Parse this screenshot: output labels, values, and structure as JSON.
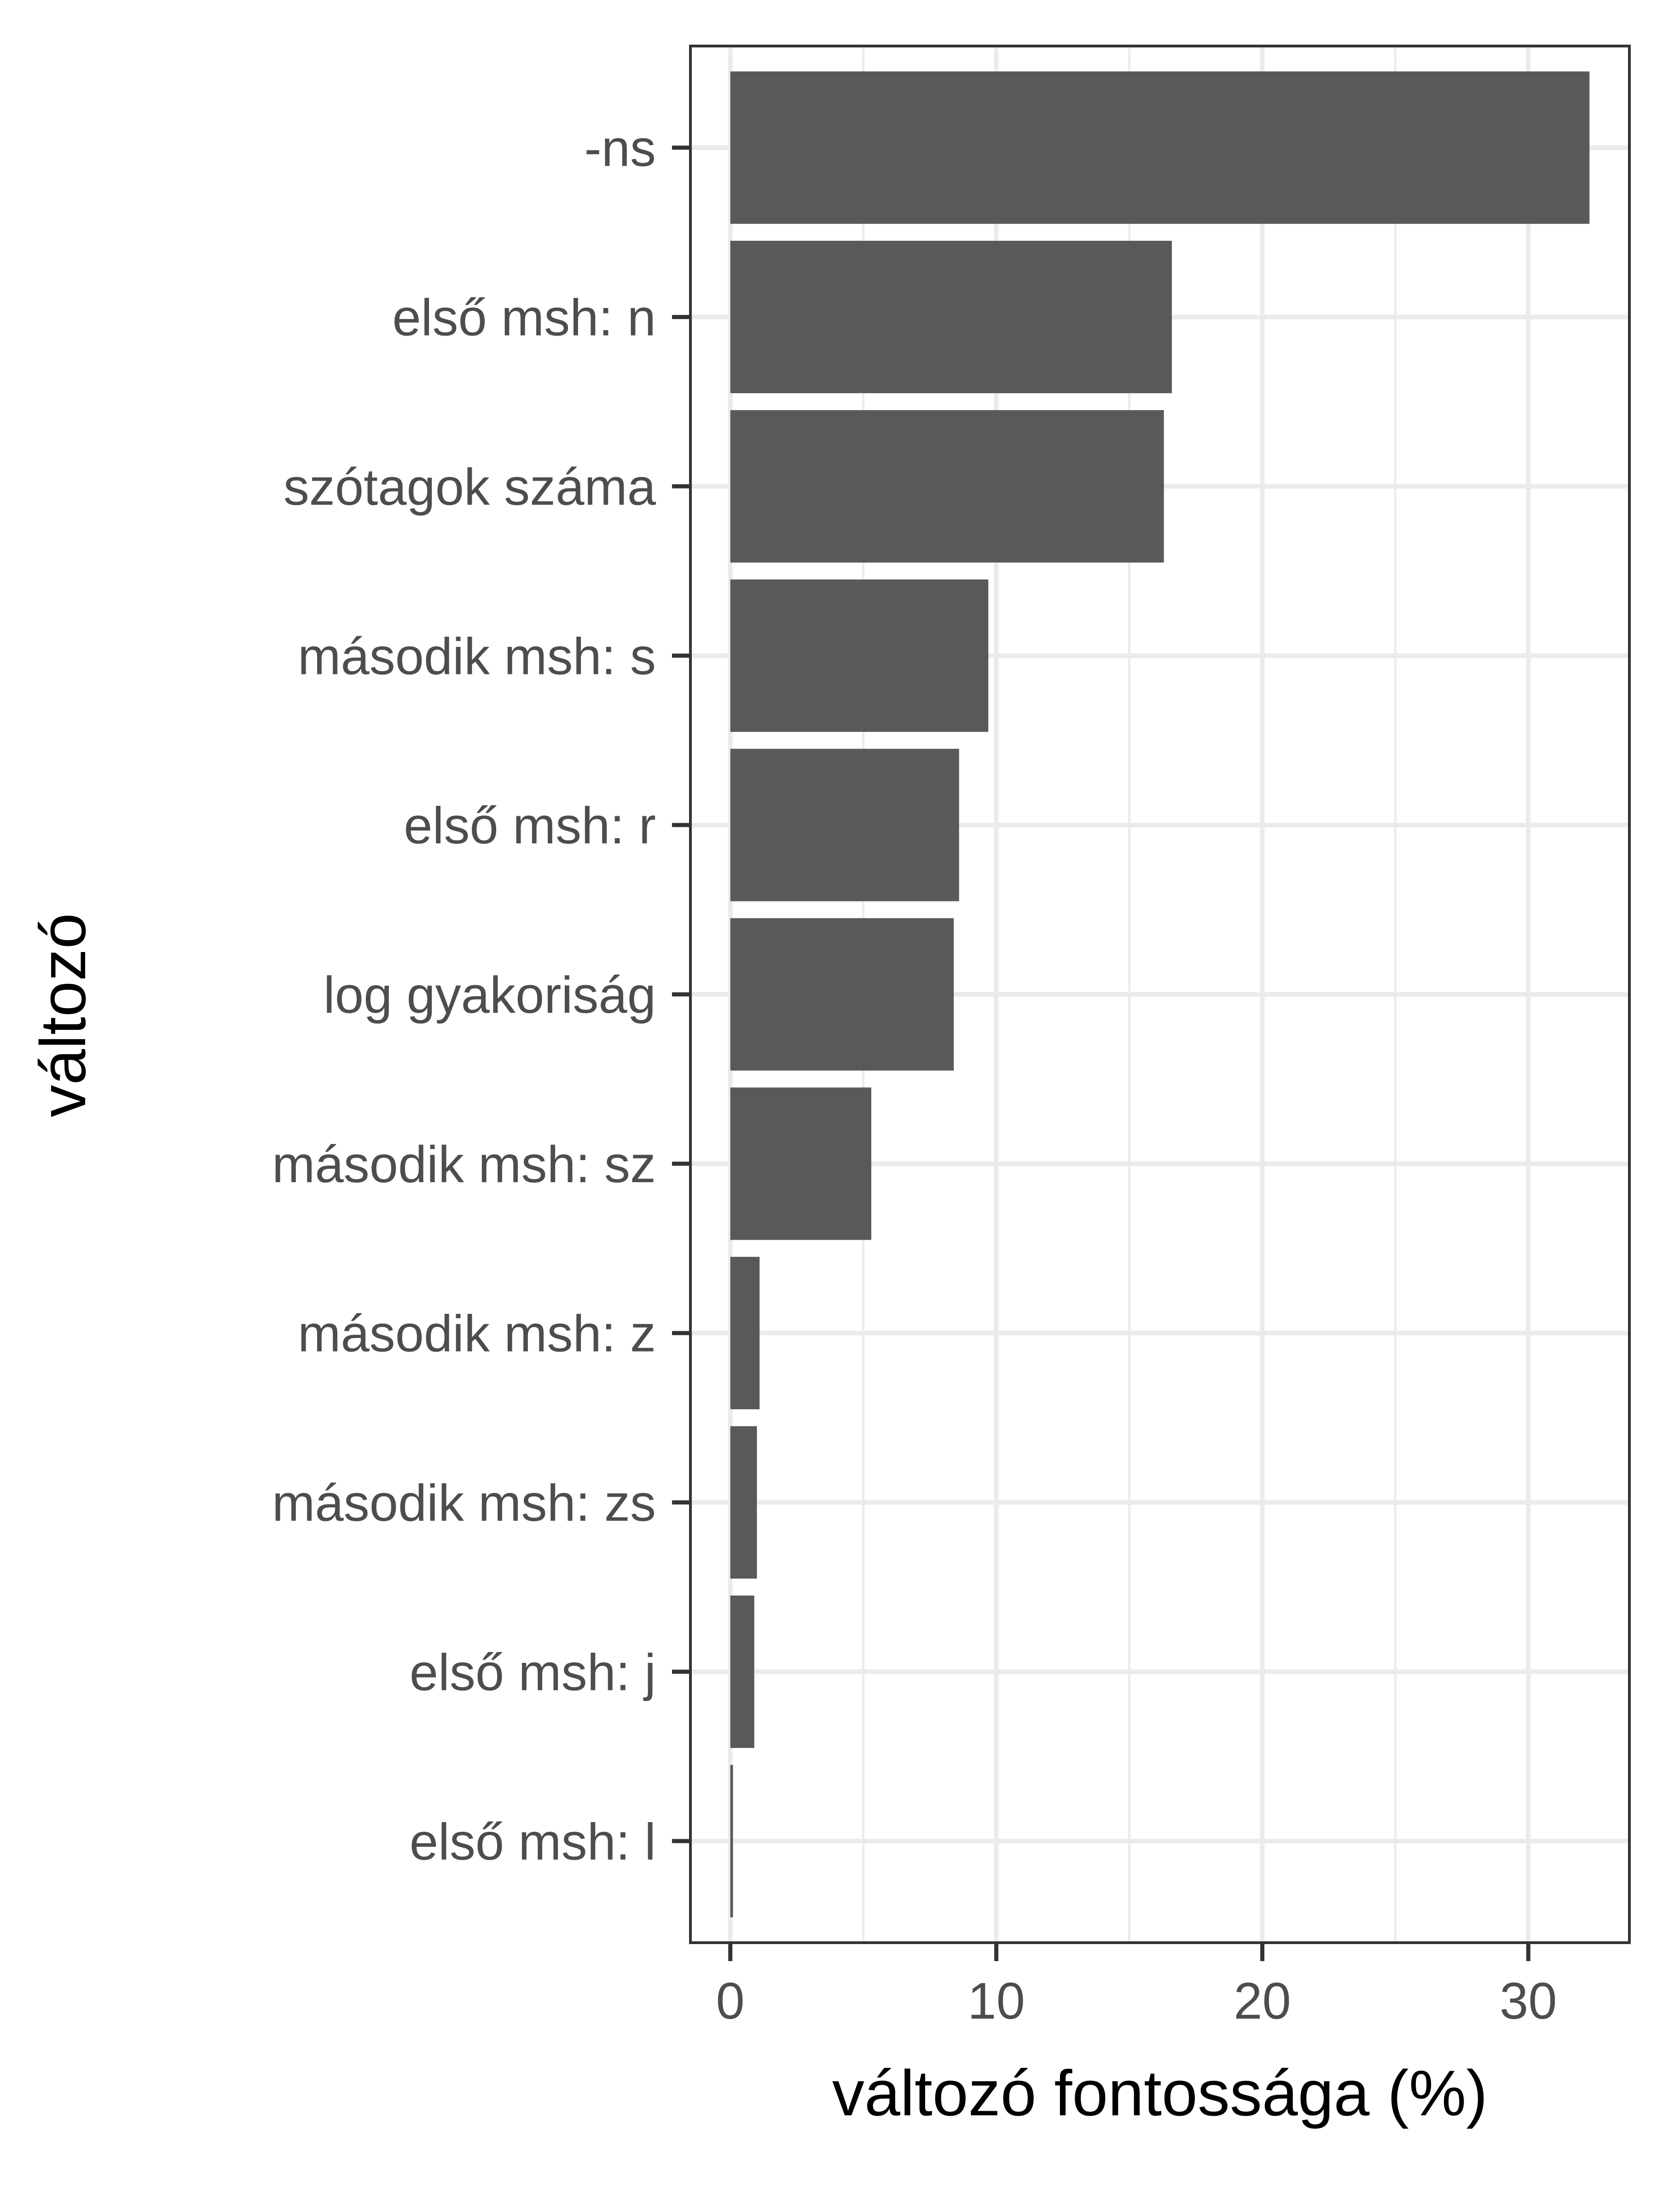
{
  "chart_data": {
    "type": "bar",
    "orientation": "horizontal",
    "categories": [
      "-ns",
      "első msh: n",
      "szótagok száma",
      "második msh: s",
      "első msh: r",
      "log gyakoriság",
      "második msh: sz",
      "második msh: z",
      "második msh: zs",
      "első msh: j",
      "első msh: l"
    ],
    "values": [
      32.3,
      16.6,
      16.3,
      9.7,
      8.6,
      8.4,
      5.3,
      1.1,
      1.0,
      0.9,
      0.1
    ],
    "xlabel": "változó fontossága (%)",
    "ylabel": "változó",
    "xlim": [
      -1.5,
      33.8
    ],
    "x_ticks": [
      0,
      10,
      20,
      30
    ],
    "x_tick_labels": [
      "0",
      "10",
      "20",
      "30"
    ],
    "grid": true,
    "colors": {
      "bar": "#595959",
      "grid": "#ebebeb",
      "panel_border": "#333333",
      "axis_text": "#4d4d4d",
      "axis_title": "#000000",
      "tick": "#333333"
    }
  }
}
